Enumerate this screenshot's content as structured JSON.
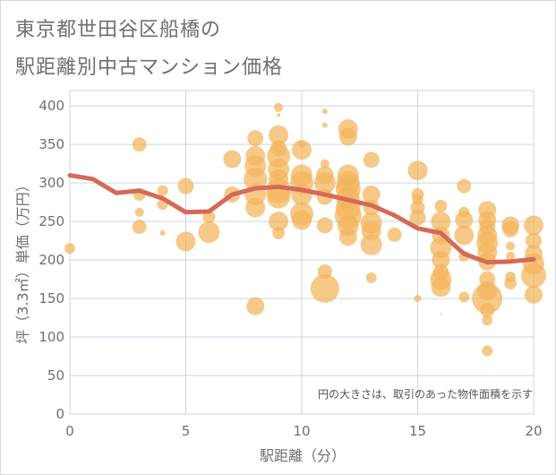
{
  "title_line1": "東京都世田谷区船橋の",
  "title_line2": "駅距離別中古マンション価格",
  "chart_data": {
    "type": "scatter",
    "xlabel": "駅距離（分）",
    "ylabel": "坪（3.3㎡）単価（万円）",
    "xlim": [
      0,
      20
    ],
    "ylim": [
      0,
      420
    ],
    "xticks": [
      0,
      5,
      10,
      15,
      20
    ],
    "yticks": [
      0,
      50,
      100,
      150,
      200,
      250,
      300,
      350,
      400
    ],
    "grid": true,
    "annotation": "円の大きさは、取引のあった物件面積を示す",
    "colors": {
      "bubble": "#f2b45a",
      "line": "#d46a57",
      "grid": "#c9d6e3"
    },
    "trend_line": {
      "x": [
        0,
        1,
        2,
        3,
        4,
        5,
        6,
        7,
        8,
        9,
        10,
        11,
        12,
        13,
        14,
        15,
        16,
        17,
        18,
        19,
        20
      ],
      "y": [
        310,
        305,
        287,
        290,
        280,
        262,
        263,
        285,
        293,
        295,
        291,
        285,
        278,
        271,
        258,
        241,
        235,
        208,
        197,
        198,
        201
      ]
    },
    "bubbles": [
      {
        "x": 0,
        "y": 215,
        "r": 6
      },
      {
        "x": 3,
        "y": 350,
        "r": 8
      },
      {
        "x": 3,
        "y": 285,
        "r": 7
      },
      {
        "x": 3,
        "y": 262,
        "r": 5
      },
      {
        "x": 3,
        "y": 243,
        "r": 8
      },
      {
        "x": 4,
        "y": 290,
        "r": 6
      },
      {
        "x": 4,
        "y": 272,
        "r": 6
      },
      {
        "x": 4,
        "y": 235,
        "r": 3
      },
      {
        "x": 5,
        "y": 296,
        "r": 9
      },
      {
        "x": 5,
        "y": 224,
        "r": 11
      },
      {
        "x": 6,
        "y": 256,
        "r": 7
      },
      {
        "x": 6,
        "y": 236,
        "r": 12
      },
      {
        "x": 7,
        "y": 331,
        "r": 10
      },
      {
        "x": 7,
        "y": 285,
        "r": 9
      },
      {
        "x": 8,
        "y": 358,
        "r": 9
      },
      {
        "x": 8,
        "y": 335,
        "r": 11
      },
      {
        "x": 8,
        "y": 322,
        "r": 12
      },
      {
        "x": 8,
        "y": 305,
        "r": 13
      },
      {
        "x": 8,
        "y": 285,
        "r": 12
      },
      {
        "x": 8,
        "y": 268,
        "r": 11
      },
      {
        "x": 8,
        "y": 140,
        "r": 10
      },
      {
        "x": 9,
        "y": 398,
        "r": 5
      },
      {
        "x": 9,
        "y": 388,
        "r": 2
      },
      {
        "x": 9,
        "y": 362,
        "r": 11
      },
      {
        "x": 9,
        "y": 345,
        "r": 9
      },
      {
        "x": 9,
        "y": 335,
        "r": 13
      },
      {
        "x": 9,
        "y": 318,
        "r": 12
      },
      {
        "x": 9,
        "y": 305,
        "r": 11
      },
      {
        "x": 9,
        "y": 290,
        "r": 14
      },
      {
        "x": 9,
        "y": 282,
        "r": 13
      },
      {
        "x": 9,
        "y": 250,
        "r": 11
      },
      {
        "x": 9,
        "y": 235,
        "r": 7
      },
      {
        "x": 10,
        "y": 350,
        "r": 4
      },
      {
        "x": 10,
        "y": 343,
        "r": 11
      },
      {
        "x": 10,
        "y": 310,
        "r": 12
      },
      {
        "x": 10,
        "y": 300,
        "r": 13
      },
      {
        "x": 10,
        "y": 285,
        "r": 12
      },
      {
        "x": 10,
        "y": 260,
        "r": 13
      },
      {
        "x": 10,
        "y": 252,
        "r": 11
      },
      {
        "x": 11,
        "y": 393,
        "r": 3
      },
      {
        "x": 11,
        "y": 375,
        "r": 3
      },
      {
        "x": 11,
        "y": 325,
        "r": 5
      },
      {
        "x": 11,
        "y": 310,
        "r": 10
      },
      {
        "x": 11,
        "y": 300,
        "r": 12
      },
      {
        "x": 11,
        "y": 282,
        "r": 9
      },
      {
        "x": 11,
        "y": 245,
        "r": 9
      },
      {
        "x": 11,
        "y": 185,
        "r": 8
      },
      {
        "x": 11,
        "y": 163,
        "r": 16
      },
      {
        "x": 12,
        "y": 370,
        "r": 11
      },
      {
        "x": 12,
        "y": 360,
        "r": 10
      },
      {
        "x": 12,
        "y": 310,
        "r": 12
      },
      {
        "x": 12,
        "y": 300,
        "r": 13
      },
      {
        "x": 12,
        "y": 292,
        "r": 14
      },
      {
        "x": 12,
        "y": 280,
        "r": 13
      },
      {
        "x": 12,
        "y": 268,
        "r": 14
      },
      {
        "x": 12,
        "y": 258,
        "r": 15
      },
      {
        "x": 12,
        "y": 245,
        "r": 12
      },
      {
        "x": 12,
        "y": 230,
        "r": 10
      },
      {
        "x": 13,
        "y": 330,
        "r": 9
      },
      {
        "x": 13,
        "y": 285,
        "r": 10
      },
      {
        "x": 13,
        "y": 268,
        "r": 9
      },
      {
        "x": 13,
        "y": 248,
        "r": 12
      },
      {
        "x": 13,
        "y": 238,
        "r": 11
      },
      {
        "x": 13,
        "y": 220,
        "r": 12
      },
      {
        "x": 13,
        "y": 177,
        "r": 6
      },
      {
        "x": 14,
        "y": 233,
        "r": 8
      },
      {
        "x": 15,
        "y": 316,
        "r": 11
      },
      {
        "x": 15,
        "y": 285,
        "r": 7
      },
      {
        "x": 15,
        "y": 278,
        "r": 6
      },
      {
        "x": 15,
        "y": 268,
        "r": 8
      },
      {
        "x": 15,
        "y": 255,
        "r": 9
      },
      {
        "x": 15,
        "y": 150,
        "r": 4
      },
      {
        "x": 16,
        "y": 270,
        "r": 7
      },
      {
        "x": 16,
        "y": 250,
        "r": 11
      },
      {
        "x": 16,
        "y": 232,
        "r": 10
      },
      {
        "x": 16,
        "y": 216,
        "r": 12
      },
      {
        "x": 16,
        "y": 200,
        "r": 10
      },
      {
        "x": 16,
        "y": 184,
        "r": 9
      },
      {
        "x": 16,
        "y": 175,
        "r": 12
      },
      {
        "x": 16,
        "y": 165,
        "r": 11
      },
      {
        "x": 16,
        "y": 130,
        "r": 1
      },
      {
        "x": 17,
        "y": 296,
        "r": 8
      },
      {
        "x": 17,
        "y": 262,
        "r": 6
      },
      {
        "x": 17,
        "y": 252,
        "r": 10
      },
      {
        "x": 17,
        "y": 232,
        "r": 11
      },
      {
        "x": 17,
        "y": 205,
        "r": 6
      },
      {
        "x": 17,
        "y": 152,
        "r": 6
      },
      {
        "x": 18,
        "y": 265,
        "r": 10
      },
      {
        "x": 18,
        "y": 252,
        "r": 10
      },
      {
        "x": 18,
        "y": 243,
        "r": 9
      },
      {
        "x": 18,
        "y": 232,
        "r": 11
      },
      {
        "x": 18,
        "y": 222,
        "r": 12
      },
      {
        "x": 18,
        "y": 210,
        "r": 11
      },
      {
        "x": 18,
        "y": 198,
        "r": 10
      },
      {
        "x": 18,
        "y": 175,
        "r": 9
      },
      {
        "x": 18,
        "y": 160,
        "r": 11
      },
      {
        "x": 18,
        "y": 150,
        "r": 17
      },
      {
        "x": 18,
        "y": 135,
        "r": 8
      },
      {
        "x": 18,
        "y": 122,
        "r": 6
      },
      {
        "x": 18,
        "y": 82,
        "r": 6
      },
      {
        "x": 19,
        "y": 245,
        "r": 10
      },
      {
        "x": 19,
        "y": 240,
        "r": 9
      },
      {
        "x": 19,
        "y": 218,
        "r": 5
      },
      {
        "x": 19,
        "y": 205,
        "r": 5
      },
      {
        "x": 19,
        "y": 178,
        "r": 6
      },
      {
        "x": 19,
        "y": 170,
        "r": 7
      },
      {
        "x": 20,
        "y": 245,
        "r": 11
      },
      {
        "x": 20,
        "y": 225,
        "r": 9
      },
      {
        "x": 20,
        "y": 208,
        "r": 10
      },
      {
        "x": 20,
        "y": 195,
        "r": 12
      },
      {
        "x": 20,
        "y": 180,
        "r": 14
      },
      {
        "x": 20,
        "y": 155,
        "r": 10
      }
    ]
  }
}
